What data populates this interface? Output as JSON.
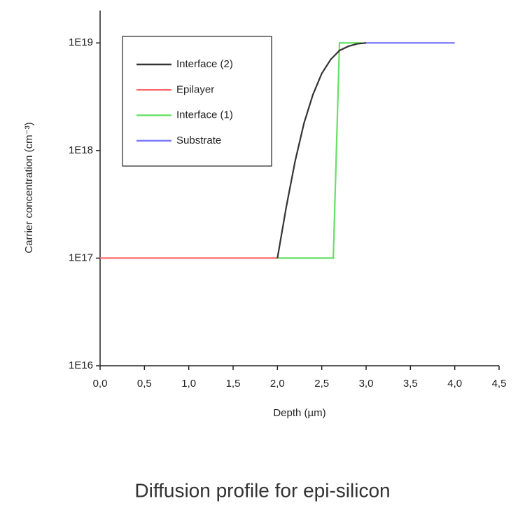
{
  "chart_data": {
    "type": "line",
    "title": "Diffusion profile for epi-silicon",
    "x_label": "Depth (µm)",
    "y_label": "Carrier concentration (cm⁻³)",
    "log_y": true,
    "xlim": [
      0,
      4.5
    ],
    "xticks": [
      {
        "value": 0,
        "label": "0,0"
      },
      {
        "value": 0.5,
        "label": "0,5"
      },
      {
        "value": 1,
        "label": "1,0"
      },
      {
        "value": 1.5,
        "label": "1,5"
      },
      {
        "value": 2,
        "label": "2,0"
      },
      {
        "value": 2.5,
        "label": "2,5"
      },
      {
        "value": 3,
        "label": "3,0"
      },
      {
        "value": 3.5,
        "label": "3,5"
      },
      {
        "value": 4,
        "label": "4,0"
      },
      {
        "value": 4.5,
        "label": "4,5"
      }
    ],
    "ylim": [
      1e+16,
      2e+19
    ],
    "yticks": [
      {
        "value": 1e+16,
        "label": "1E16"
      },
      {
        "value": 1e+17,
        "label": "1E17"
      },
      {
        "value": 1e+18,
        "label": "1E18"
      },
      {
        "value": 1e+19,
        "label": "1E19"
      }
    ],
    "legend": "upper left",
    "series": [
      {
        "name": "Interface (2)",
        "color": "#333333",
        "x": [
          2.0,
          2.1,
          2.2,
          2.3,
          2.4,
          2.5,
          2.6,
          2.7,
          2.8,
          2.9,
          3.0
        ],
        "values": [
          1e+17,
          3e+17,
          8e+17,
          1.8e+18,
          3.3e+18,
          5.2e+18,
          7e+18,
          8.5e+18,
          9.3e+18,
          9.8e+18,
          1e+19
        ]
      },
      {
        "name": "Epilayer",
        "color": "#ff6b6b",
        "x": [
          0,
          2.0
        ],
        "values": [
          1e+17,
          1e+17
        ]
      },
      {
        "name": "Interface (1)",
        "color": "#66e066",
        "x": [
          2.0,
          2.63,
          2.7,
          2.95
        ],
        "values": [
          1e+17,
          1e+17,
          1e+19,
          1e+19
        ]
      },
      {
        "name": "Substrate",
        "color": "#7b7bff",
        "x": [
          3.0,
          4.0
        ],
        "values": [
          1e+19,
          1e+19
        ]
      }
    ]
  }
}
